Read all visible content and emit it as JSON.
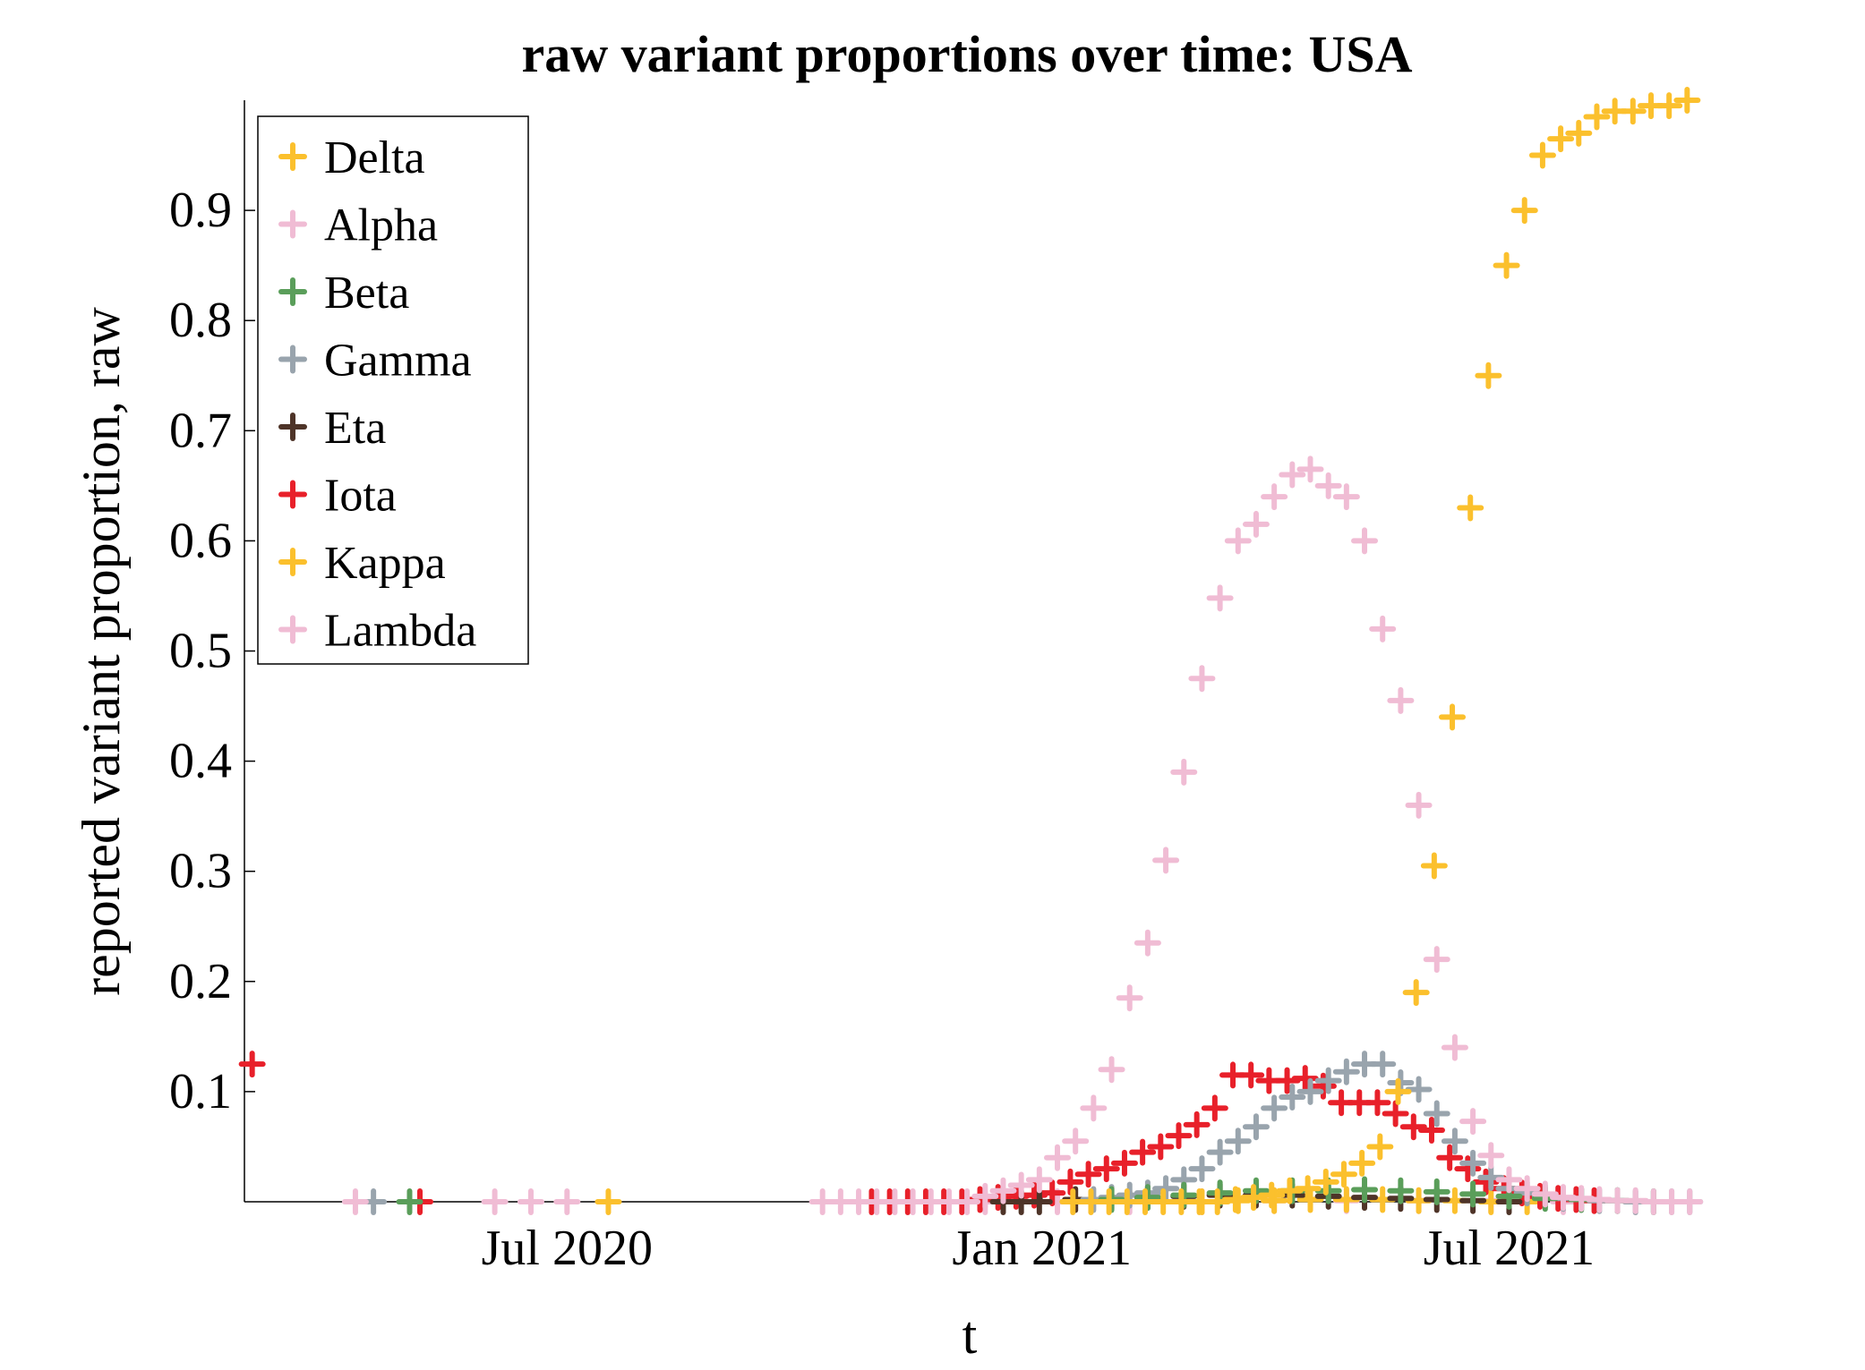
{
  "chart_data": {
    "type": "scatter",
    "title": "raw variant proportions over time: USA",
    "xlabel": "t",
    "ylabel": "reported variant proportion, raw",
    "xlim": [
      "2020-02-27",
      "2021-09-11"
    ],
    "ylim": [
      0,
      1
    ],
    "x_ticks": [
      {
        "date": "2020-07-01",
        "label": "Jul 2020"
      },
      {
        "date": "2021-01-01",
        "label": "Jan 2021"
      },
      {
        "date": "2021-07-01",
        "label": "Jul 2021"
      }
    ],
    "y_ticks": [
      {
        "value": 0.1,
        "label": "0.1"
      },
      {
        "value": 0.2,
        "label": "0.2"
      },
      {
        "value": 0.3,
        "label": "0.3"
      },
      {
        "value": 0.4,
        "label": "0.4"
      },
      {
        "value": 0.5,
        "label": "0.5"
      },
      {
        "value": 0.6,
        "label": "0.6"
      },
      {
        "value": 0.7,
        "label": "0.7"
      },
      {
        "value": 0.8,
        "label": "0.8"
      },
      {
        "value": 0.9,
        "label": "0.9"
      }
    ],
    "grid": false,
    "legend_position": "top-left",
    "marker": "+",
    "series": [
      {
        "name": "Delta",
        "color": "#fbc02d",
        "x": [
          "2020-07-17",
          "2021-01-13",
          "2021-01-20",
          "2021-01-27",
          "2021-02-03",
          "2021-02-10",
          "2021-02-17",
          "2021-02-24",
          "2021-03-03",
          "2021-03-10",
          "2021-03-17",
          "2021-03-24",
          "2021-03-31",
          "2021-04-07",
          "2021-04-14",
          "2021-04-21",
          "2021-04-28",
          "2021-05-05",
          "2021-05-12",
          "2021-05-19",
          "2021-05-26",
          "2021-06-02",
          "2021-06-09",
          "2021-06-16",
          "2021-06-23",
          "2021-06-30",
          "2021-07-07",
          "2021-07-14",
          "2021-07-21",
          "2021-07-28",
          "2021-08-04",
          "2021-08-11",
          "2021-08-18",
          "2021-08-25",
          "2021-09-01",
          "2021-09-08"
        ],
        "y": [
          0,
          0,
          0,
          0,
          0,
          0,
          0,
          0,
          0,
          0,
          0.002,
          0.004,
          0.006,
          0.01,
          0.012,
          0.018,
          0.025,
          0.035,
          0.05,
          0.1,
          0.19,
          0.305,
          0.44,
          0.63,
          0.75,
          0.85,
          0.9,
          0.95,
          0.965,
          0.97,
          0.985,
          0.99,
          0.99,
          0.995,
          0.995,
          1.0
        ]
      },
      {
        "name": "Alpha",
        "color": "#f0bcd4",
        "x": [
          "2020-04-10",
          "2020-06-17",
          "2020-07-01",
          "2020-10-08",
          "2020-10-15",
          "2020-10-22",
          "2020-10-29",
          "2020-11-05",
          "2020-11-12",
          "2020-11-19",
          "2020-11-26",
          "2020-12-03",
          "2020-12-10",
          "2020-12-17",
          "2020-12-24",
          "2020-12-31",
          "2021-01-07",
          "2021-01-14",
          "2021-01-21",
          "2021-01-28",
          "2021-02-04",
          "2021-02-11",
          "2021-02-18",
          "2021-02-25",
          "2021-03-04",
          "2021-03-11",
          "2021-03-18",
          "2021-03-25",
          "2021-04-01",
          "2021-04-08",
          "2021-04-15",
          "2021-04-22",
          "2021-04-29",
          "2021-05-06",
          "2021-05-13",
          "2021-05-20",
          "2021-05-27",
          "2021-06-03",
          "2021-06-10",
          "2021-06-17",
          "2021-06-24",
          "2021-07-01",
          "2021-07-08",
          "2021-07-15",
          "2021-07-22",
          "2021-07-29",
          "2021-08-05",
          "2021-08-12",
          "2021-08-19",
          "2021-08-26",
          "2021-09-02",
          "2021-09-09"
        ],
        "y": [
          0,
          0,
          0,
          0,
          0,
          0,
          0,
          0,
          0,
          0,
          0,
          0,
          0.005,
          0.01,
          0.015,
          0.02,
          0.04,
          0.055,
          0.085,
          0.12,
          0.185,
          0.235,
          0.31,
          0.39,
          0.475,
          0.548,
          0.6,
          0.615,
          0.64,
          0.66,
          0.665,
          0.65,
          0.64,
          0.6,
          0.52,
          0.455,
          0.36,
          0.22,
          0.14,
          0.073,
          0.042,
          0.02,
          0.012,
          0.007,
          0.004,
          0.003,
          0.002,
          0.001,
          0.001,
          0,
          0,
          0
        ]
      },
      {
        "name": "Beta",
        "color": "#5a9e5a",
        "x": [
          "2020-05-01",
          "2021-01-28",
          "2021-02-11",
          "2021-02-25",
          "2021-03-11",
          "2021-03-25",
          "2021-04-08",
          "2021-04-22",
          "2021-05-06",
          "2021-05-20",
          "2021-06-03",
          "2021-06-17",
          "2021-07-01",
          "2021-07-15",
          "2021-07-29",
          "2021-08-12",
          "2021-08-26"
        ],
        "y": [
          0,
          0.002,
          0.004,
          0.006,
          0.008,
          0.01,
          0.01,
          0.01,
          0.011,
          0.01,
          0.009,
          0.007,
          0.005,
          0.003,
          0.002,
          0.001,
          0
        ]
      },
      {
        "name": "Gamma",
        "color": "#99a4ad",
        "x": [
          "2020-04-17",
          "2021-01-21",
          "2021-01-28",
          "2021-02-04",
          "2021-02-11",
          "2021-02-18",
          "2021-02-25",
          "2021-03-04",
          "2021-03-11",
          "2021-03-18",
          "2021-03-25",
          "2021-04-01",
          "2021-04-08",
          "2021-04-15",
          "2021-04-22",
          "2021-04-29",
          "2021-05-06",
          "2021-05-13",
          "2021-05-20",
          "2021-05-27",
          "2021-06-03",
          "2021-06-10",
          "2021-06-17",
          "2021-06-24",
          "2021-07-01",
          "2021-07-08",
          "2021-07-15",
          "2021-07-22",
          "2021-07-29",
          "2021-08-05",
          "2021-08-12",
          "2021-08-19",
          "2021-08-26",
          "2021-09-02",
          "2021-09-09"
        ],
        "y": [
          0,
          0.002,
          0.004,
          0.006,
          0.008,
          0.012,
          0.02,
          0.03,
          0.045,
          0.055,
          0.068,
          0.085,
          0.095,
          0.1,
          0.11,
          0.118,
          0.125,
          0.125,
          0.108,
          0.102,
          0.08,
          0.055,
          0.035,
          0.022,
          0.012,
          0.008,
          0.005,
          0.003,
          0.002,
          0.001,
          0.001,
          0,
          0,
          0,
          0
        ]
      },
      {
        "name": "Eta",
        "color": "#4e3428",
        "x": [
          "2020-12-17",
          "2020-12-24",
          "2020-12-31",
          "2021-01-14",
          "2021-01-28",
          "2021-02-11",
          "2021-02-25",
          "2021-03-11",
          "2021-03-25",
          "2021-04-08",
          "2021-04-22",
          "2021-05-06",
          "2021-05-20",
          "2021-06-03",
          "2021-06-17",
          "2021-07-01"
        ],
        "y": [
          0,
          0,
          0,
          0.002,
          0.003,
          0.004,
          0.005,
          0.006,
          0.006,
          0.006,
          0.005,
          0.004,
          0.003,
          0.002,
          0.001,
          0
        ]
      },
      {
        "name": "Iota",
        "color": "#e8202a",
        "x": [
          "2020-03-01",
          "2020-05-05",
          "2020-10-27",
          "2020-11-03",
          "2020-11-10",
          "2020-11-17",
          "2020-11-24",
          "2020-12-01",
          "2020-12-08",
          "2020-12-15",
          "2020-12-22",
          "2020-12-29",
          "2021-01-05",
          "2021-01-12",
          "2021-01-19",
          "2021-01-26",
          "2021-02-02",
          "2021-02-09",
          "2021-02-16",
          "2021-02-23",
          "2021-03-02",
          "2021-03-09",
          "2021-03-16",
          "2021-03-23",
          "2021-03-30",
          "2021-04-06",
          "2021-04-13",
          "2021-04-20",
          "2021-04-27",
          "2021-05-04",
          "2021-05-11",
          "2021-05-18",
          "2021-05-25",
          "2021-06-01",
          "2021-06-08",
          "2021-06-15",
          "2021-06-22",
          "2021-06-29",
          "2021-07-06",
          "2021-07-13",
          "2021-07-20",
          "2021-07-27",
          "2021-08-03"
        ],
        "y": [
          0.125,
          0,
          0,
          0,
          0,
          0,
          0,
          0,
          0.002,
          0.004,
          0.005,
          0.006,
          0.008,
          0.018,
          0.025,
          0.03,
          0.035,
          0.045,
          0.05,
          0.06,
          0.07,
          0.085,
          0.115,
          0.115,
          0.11,
          0.11,
          0.112,
          0.105,
          0.09,
          0.09,
          0.09,
          0.08,
          0.068,
          0.065,
          0.04,
          0.03,
          0.018,
          0.012,
          0.008,
          0.005,
          0.003,
          0.002,
          0.001
        ]
      },
      {
        "name": "Kappa",
        "color": "#fbc02d",
        "x": [
          "2021-03-04",
          "2021-03-18",
          "2021-04-01",
          "2021-04-15",
          "2021-04-29",
          "2021-05-13",
          "2021-05-27",
          "2021-06-10",
          "2021-06-24",
          "2021-07-08"
        ],
        "y": [
          0,
          0.001,
          0.001,
          0.002,
          0.002,
          0.002,
          0.001,
          0.001,
          0,
          0
        ]
      },
      {
        "name": "Lambda",
        "color": "#f0bcd4",
        "x": [
          "2020-06-03",
          "2020-12-10",
          "2021-01-07",
          "2021-02-04",
          "2021-03-04",
          "2021-04-01",
          "2021-04-29",
          "2021-05-27",
          "2021-06-24",
          "2021-07-22",
          "2021-08-19"
        ],
        "y": [
          0,
          0,
          0,
          0,
          0,
          0.001,
          0.001,
          0.001,
          0.001,
          0,
          0
        ]
      }
    ]
  }
}
